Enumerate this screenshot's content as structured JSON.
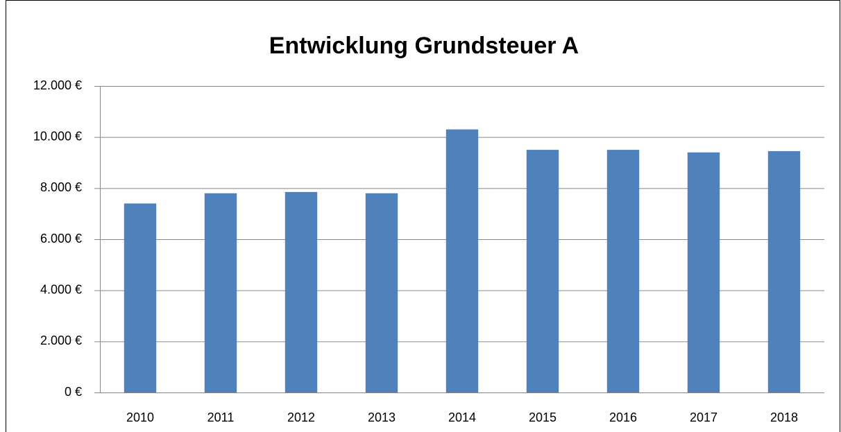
{
  "chart_data": {
    "type": "bar",
    "title": "Entwicklung Grundsteuer A",
    "categories": [
      "2010",
      "2011",
      "2012",
      "2013",
      "2014",
      "2015",
      "2016",
      "2017",
      "2018"
    ],
    "values": [
      7400,
      7800,
      7850,
      7800,
      10300,
      9500,
      9500,
      9400,
      9450
    ],
    "color": "#4f81bd",
    "ylim": [
      0,
      12000
    ],
    "yticks": [
      {
        "value": 0,
        "label": "0 €"
      },
      {
        "value": 2000,
        "label": "2.000 €"
      },
      {
        "value": 4000,
        "label": "4.000 €"
      },
      {
        "value": 6000,
        "label": "6.000 €"
      },
      {
        "value": 8000,
        "label": "8.000 €"
      },
      {
        "value": 10000,
        "label": "10.000 €"
      },
      {
        "value": 12000,
        "label": "12.000 €"
      }
    ],
    "grid": true
  }
}
